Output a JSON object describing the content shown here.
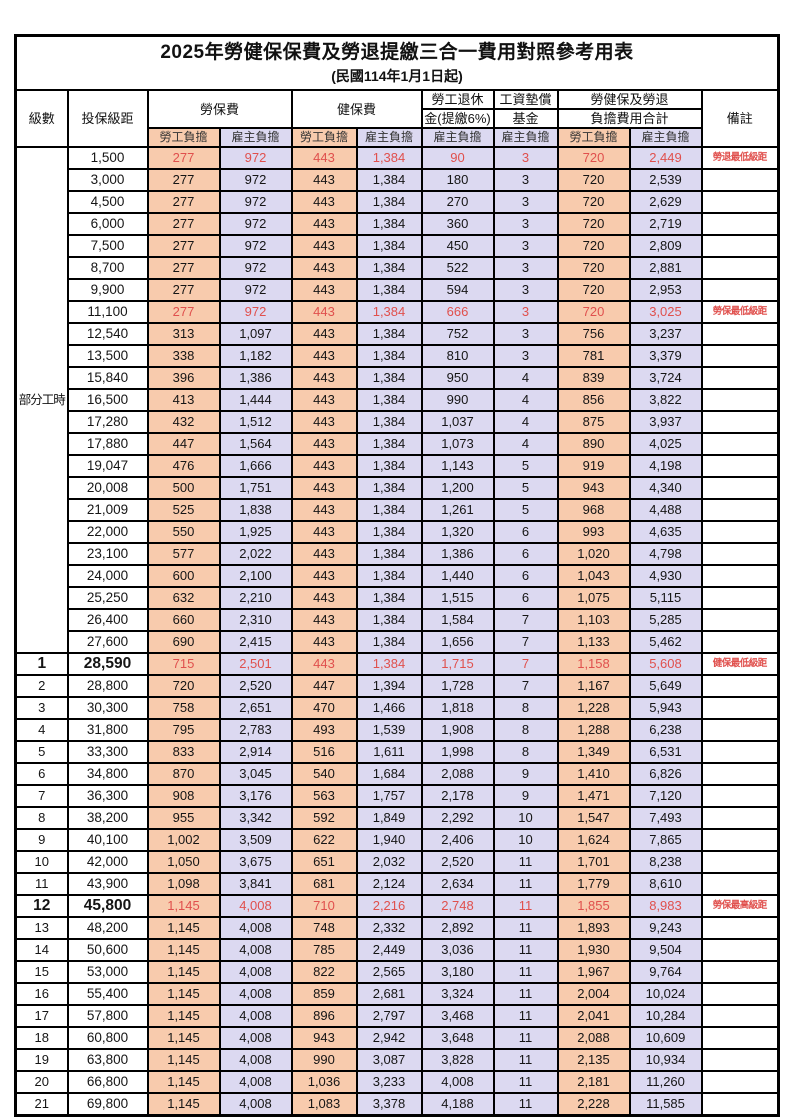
{
  "title": "2025年勞健保保費及勞退提繳三合一費用對照參考用表",
  "subtitle": "(民國114年1月1日起)",
  "colors": {
    "employee_fill": "#f8cbad",
    "employer_fill": "#dcd9f1",
    "highlight_red": "#e0504d",
    "border": "#000000",
    "background": "#ffffff"
  },
  "header": {
    "level": "級數",
    "bracket": "投保級距",
    "labor_ins": "勞保費",
    "health_ins": "健保費",
    "pension_line1": "勞工退休",
    "pension_line2": "金(提繳6%)",
    "wage_fund_line1": "工資墊償",
    "wage_fund_line2": "基金",
    "total_line1": "勞健保及勞退",
    "total_line2": "負擔費用合計",
    "employee": "勞工負擔",
    "employer": "雇主負擔",
    "note": "備註"
  },
  "table": {
    "part_time_label": "部分工時",
    "part_time_row_count": 23,
    "columns": [
      "級數",
      "投保級距",
      "勞保費-勞工負擔",
      "勞保費-雇主負擔",
      "健保費-勞工負擔",
      "健保費-雇主負擔",
      "勞工退休金(提繳6%)-雇主負擔",
      "工資墊償基金-雇主負擔",
      "合計-勞工負擔",
      "合計-雇主負擔",
      "備註"
    ],
    "rows": [
      {
        "bk": "1,500",
        "v": [
          "277",
          "972",
          "443",
          "1,384",
          "90",
          "3",
          "720",
          "2,449"
        ],
        "n": "勞退最低級距",
        "hl": true
      },
      {
        "bk": "3,000",
        "v": [
          "277",
          "972",
          "443",
          "1,384",
          "180",
          "3",
          "720",
          "2,539"
        ]
      },
      {
        "bk": "4,500",
        "v": [
          "277",
          "972",
          "443",
          "1,384",
          "270",
          "3",
          "720",
          "2,629"
        ]
      },
      {
        "bk": "6,000",
        "v": [
          "277",
          "972",
          "443",
          "1,384",
          "360",
          "3",
          "720",
          "2,719"
        ]
      },
      {
        "bk": "7,500",
        "v": [
          "277",
          "972",
          "443",
          "1,384",
          "450",
          "3",
          "720",
          "2,809"
        ]
      },
      {
        "bk": "8,700",
        "v": [
          "277",
          "972",
          "443",
          "1,384",
          "522",
          "3",
          "720",
          "2,881"
        ]
      },
      {
        "bk": "9,900",
        "v": [
          "277",
          "972",
          "443",
          "1,384",
          "594",
          "3",
          "720",
          "2,953"
        ]
      },
      {
        "bk": "11,100",
        "v": [
          "277",
          "972",
          "443",
          "1,384",
          "666",
          "3",
          "720",
          "3,025"
        ],
        "n": "勞保最低級距",
        "hl": true
      },
      {
        "bk": "12,540",
        "v": [
          "313",
          "1,097",
          "443",
          "1,384",
          "752",
          "3",
          "756",
          "3,237"
        ]
      },
      {
        "bk": "13,500",
        "v": [
          "338",
          "1,182",
          "443",
          "1,384",
          "810",
          "3",
          "781",
          "3,379"
        ]
      },
      {
        "bk": "15,840",
        "v": [
          "396",
          "1,386",
          "443",
          "1,384",
          "950",
          "4",
          "839",
          "3,724"
        ]
      },
      {
        "bk": "16,500",
        "v": [
          "413",
          "1,444",
          "443",
          "1,384",
          "990",
          "4",
          "856",
          "3,822"
        ]
      },
      {
        "bk": "17,280",
        "v": [
          "432",
          "1,512",
          "443",
          "1,384",
          "1,037",
          "4",
          "875",
          "3,937"
        ]
      },
      {
        "bk": "17,880",
        "v": [
          "447",
          "1,564",
          "443",
          "1,384",
          "1,073",
          "4",
          "890",
          "4,025"
        ]
      },
      {
        "bk": "19,047",
        "v": [
          "476",
          "1,666",
          "443",
          "1,384",
          "1,143",
          "5",
          "919",
          "4,198"
        ]
      },
      {
        "bk": "20,008",
        "v": [
          "500",
          "1,751",
          "443",
          "1,384",
          "1,200",
          "5",
          "943",
          "4,340"
        ]
      },
      {
        "bk": "21,009",
        "v": [
          "525",
          "1,838",
          "443",
          "1,384",
          "1,261",
          "5",
          "968",
          "4,488"
        ]
      },
      {
        "bk": "22,000",
        "v": [
          "550",
          "1,925",
          "443",
          "1,384",
          "1,320",
          "6",
          "993",
          "4,635"
        ]
      },
      {
        "bk": "23,100",
        "v": [
          "577",
          "2,022",
          "443",
          "1,384",
          "1,386",
          "6",
          "1,020",
          "4,798"
        ]
      },
      {
        "bk": "24,000",
        "v": [
          "600",
          "2,100",
          "443",
          "1,384",
          "1,440",
          "6",
          "1,043",
          "4,930"
        ]
      },
      {
        "bk": "25,250",
        "v": [
          "632",
          "2,210",
          "443",
          "1,384",
          "1,515",
          "6",
          "1,075",
          "5,115"
        ]
      },
      {
        "bk": "26,400",
        "v": [
          "660",
          "2,310",
          "443",
          "1,384",
          "1,584",
          "7",
          "1,103",
          "5,285"
        ]
      },
      {
        "bk": "27,600",
        "v": [
          "690",
          "2,415",
          "443",
          "1,384",
          "1,656",
          "7",
          "1,133",
          "5,462"
        ]
      },
      {
        "lv": "1",
        "bk": "28,590",
        "v": [
          "715",
          "2,501",
          "443",
          "1,384",
          "1,715",
          "7",
          "1,158",
          "5,608"
        ],
        "n": "健保最低級距",
        "hl": true,
        "big": true
      },
      {
        "lv": "2",
        "bk": "28,800",
        "v": [
          "720",
          "2,520",
          "447",
          "1,394",
          "1,728",
          "7",
          "1,167",
          "5,649"
        ]
      },
      {
        "lv": "3",
        "bk": "30,300",
        "v": [
          "758",
          "2,651",
          "470",
          "1,466",
          "1,818",
          "8",
          "1,228",
          "5,943"
        ]
      },
      {
        "lv": "4",
        "bk": "31,800",
        "v": [
          "795",
          "2,783",
          "493",
          "1,539",
          "1,908",
          "8",
          "1,288",
          "6,238"
        ]
      },
      {
        "lv": "5",
        "bk": "33,300",
        "v": [
          "833",
          "2,914",
          "516",
          "1,611",
          "1,998",
          "8",
          "1,349",
          "6,531"
        ]
      },
      {
        "lv": "6",
        "bk": "34,800",
        "v": [
          "870",
          "3,045",
          "540",
          "1,684",
          "2,088",
          "9",
          "1,410",
          "6,826"
        ]
      },
      {
        "lv": "7",
        "bk": "36,300",
        "v": [
          "908",
          "3,176",
          "563",
          "1,757",
          "2,178",
          "9",
          "1,471",
          "7,120"
        ]
      },
      {
        "lv": "8",
        "bk": "38,200",
        "v": [
          "955",
          "3,342",
          "592",
          "1,849",
          "2,292",
          "10",
          "1,547",
          "7,493"
        ]
      },
      {
        "lv": "9",
        "bk": "40,100",
        "v": [
          "1,002",
          "3,509",
          "622",
          "1,940",
          "2,406",
          "10",
          "1,624",
          "7,865"
        ]
      },
      {
        "lv": "10",
        "bk": "42,000",
        "v": [
          "1,050",
          "3,675",
          "651",
          "2,032",
          "2,520",
          "11",
          "1,701",
          "8,238"
        ]
      },
      {
        "lv": "11",
        "bk": "43,900",
        "v": [
          "1,098",
          "3,841",
          "681",
          "2,124",
          "2,634",
          "11",
          "1,779",
          "8,610"
        ]
      },
      {
        "lv": "12",
        "bk": "45,800",
        "v": [
          "1,145",
          "4,008",
          "710",
          "2,216",
          "2,748",
          "11",
          "1,855",
          "8,983"
        ],
        "n": "勞保最高級距",
        "hl": true,
        "big": true
      },
      {
        "lv": "13",
        "bk": "48,200",
        "v": [
          "1,145",
          "4,008",
          "748",
          "2,332",
          "2,892",
          "11",
          "1,893",
          "9,243"
        ]
      },
      {
        "lv": "14",
        "bk": "50,600",
        "v": [
          "1,145",
          "4,008",
          "785",
          "2,449",
          "3,036",
          "11",
          "1,930",
          "9,504"
        ]
      },
      {
        "lv": "15",
        "bk": "53,000",
        "v": [
          "1,145",
          "4,008",
          "822",
          "2,565",
          "3,180",
          "11",
          "1,967",
          "9,764"
        ]
      },
      {
        "lv": "16",
        "bk": "55,400",
        "v": [
          "1,145",
          "4,008",
          "859",
          "2,681",
          "3,324",
          "11",
          "2,004",
          "10,024"
        ]
      },
      {
        "lv": "17",
        "bk": "57,800",
        "v": [
          "1,145",
          "4,008",
          "896",
          "2,797",
          "3,468",
          "11",
          "2,041",
          "10,284"
        ]
      },
      {
        "lv": "18",
        "bk": "60,800",
        "v": [
          "1,145",
          "4,008",
          "943",
          "2,942",
          "3,648",
          "11",
          "2,088",
          "10,609"
        ]
      },
      {
        "lv": "19",
        "bk": "63,800",
        "v": [
          "1,145",
          "4,008",
          "990",
          "3,087",
          "3,828",
          "11",
          "2,135",
          "10,934"
        ]
      },
      {
        "lv": "20",
        "bk": "66,800",
        "v": [
          "1,145",
          "4,008",
          "1,036",
          "3,233",
          "4,008",
          "11",
          "2,181",
          "11,260"
        ]
      },
      {
        "lv": "21",
        "bk": "69,800",
        "v": [
          "1,145",
          "4,008",
          "1,083",
          "3,378",
          "4,188",
          "11",
          "2,228",
          "11,585"
        ]
      }
    ]
  }
}
